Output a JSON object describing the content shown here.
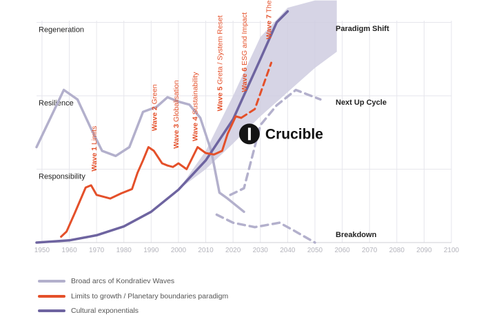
{
  "chart_data": {
    "type": "line",
    "xlim": [
      1948,
      2100
    ],
    "x_ticks": [
      1950,
      1960,
      1970,
      1980,
      1990,
      2000,
      2010,
      2020,
      2030,
      2040,
      2050,
      2060,
      2070,
      2080,
      2090,
      2100
    ],
    "y_bands": [
      "Regeneration",
      "Resilience",
      "Responsibility"
    ],
    "grid": true,
    "colors": {
      "kondratiev": "#b3b0cc",
      "limits": "#e4502a",
      "exponential": "#6e64a0",
      "band": "#cfcce0",
      "crucible": "#141414"
    },
    "series": [
      {
        "name": "Broad arcs of Kondratiev Waves",
        "style": "solid",
        "points": [
          [
            1948,
            1.3
          ],
          [
            1958,
            2.08
          ],
          [
            1963,
            1.95
          ],
          [
            1968,
            1.55
          ],
          [
            1972,
            1.25
          ],
          [
            1977,
            1.18
          ],
          [
            1982,
            1.3
          ],
          [
            1987,
            1.78
          ],
          [
            1992,
            1.85
          ],
          [
            1996,
            1.98
          ],
          [
            2000,
            1.92
          ],
          [
            2004,
            1.88
          ],
          [
            2008,
            1.7
          ],
          [
            2012,
            1.25
          ],
          [
            2015,
            0.68
          ],
          [
            2018,
            0.6
          ],
          [
            2024,
            0.42
          ]
        ]
      },
      {
        "name": "Limits to growth / Planetary boundaries paradigm",
        "style": "solid",
        "points": [
          [
            1957,
            0.08
          ],
          [
            1959,
            0.15
          ],
          [
            1962,
            0.4
          ],
          [
            1966,
            0.75
          ],
          [
            1968,
            0.78
          ],
          [
            1970,
            0.65
          ],
          [
            1975,
            0.6
          ],
          [
            1979,
            0.67
          ],
          [
            1983,
            0.73
          ],
          [
            1985,
            0.95
          ],
          [
            1987,
            1.12
          ],
          [
            1989,
            1.3
          ],
          [
            1991,
            1.25
          ],
          [
            1994,
            1.08
          ],
          [
            1996,
            1.05
          ],
          [
            1998,
            1.03
          ],
          [
            2000,
            1.08
          ],
          [
            2003,
            1.0
          ],
          [
            2005,
            1.15
          ],
          [
            2007,
            1.3
          ],
          [
            2010,
            1.22
          ],
          [
            2013,
            1.2
          ],
          [
            2016,
            1.25
          ],
          [
            2018,
            1.48
          ],
          [
            2021,
            1.72
          ],
          [
            2023,
            1.7
          ]
        ]
      },
      {
        "name": "Limits to growth / Planetary boundaries paradigm (projection)",
        "style": "dashed",
        "points": [
          [
            2023,
            1.7
          ],
          [
            2028,
            1.82
          ],
          [
            2034,
            2.45
          ]
        ]
      },
      {
        "name": "Cultural exponentials",
        "style": "solid",
        "points": [
          [
            1948,
            0.0
          ],
          [
            1960,
            0.03
          ],
          [
            1970,
            0.1
          ],
          [
            1980,
            0.22
          ],
          [
            1990,
            0.42
          ],
          [
            2000,
            0.72
          ],
          [
            2010,
            1.12
          ],
          [
            2020,
            1.68
          ],
          [
            2030,
            2.5
          ],
          [
            2036,
            3.0
          ],
          [
            2040,
            3.15
          ]
        ]
      },
      {
        "name": "Next Up Cycle",
        "style": "dashed",
        "points": [
          [
            2019,
            0.65
          ],
          [
            2024,
            0.74
          ],
          [
            2030,
            1.6
          ],
          [
            2036,
            1.87
          ],
          [
            2043,
            2.08
          ],
          [
            2052,
            1.95
          ]
        ]
      },
      {
        "name": "Breakdown",
        "style": "dashed",
        "points": [
          [
            2014,
            0.38
          ],
          [
            2020,
            0.27
          ],
          [
            2028,
            0.21
          ],
          [
            2037,
            0.27
          ],
          [
            2042,
            0.17
          ],
          [
            2050,
            0.0
          ]
        ]
      }
    ],
    "band": {
      "x": [
        2000,
        2010,
        2020,
        2030,
        2040,
        2050,
        2058
      ],
      "low": [
        0.72,
        1.0,
        1.35,
        1.72,
        2.05,
        2.38,
        2.6
      ],
      "high": [
        0.72,
        1.25,
        2.0,
        2.8,
        3.2,
        3.3,
        3.3
      ]
    },
    "crucible": {
      "x": 2026,
      "y": 1.48,
      "label": "Crucible"
    },
    "end_labels": {
      "paradigm_shift": "Paradigm Shift",
      "next_up_cycle": "Next Up Cycle",
      "breakdown": "Breakdown"
    },
    "wave_labels": [
      {
        "num": "Wave 1",
        "text": " Limits",
        "x": 1970,
        "y": 0.97
      },
      {
        "num": "Wave 2",
        "text": " Green",
        "x": 1992,
        "y": 1.52
      },
      {
        "num": "Wave 3",
        "text": " Globalisation",
        "x": 2000,
        "y": 1.28
      },
      {
        "num": "Wave 4",
        "text": " Sustainability",
        "x": 2007,
        "y": 1.38
      },
      {
        "num": "Wave 5",
        "text": " Greta / System Reset",
        "x": 2016,
        "y": 1.79
      },
      {
        "num": "Wave 6",
        "text": " ESG and Impact",
        "x": 2025,
        "y": 2.05
      },
      {
        "num": "Wave 7",
        "text": " The Big One",
        "x": 2034,
        "y": 2.77
      }
    ]
  },
  "legend": [
    {
      "label": "Broad arcs of Kondratiev Waves",
      "color": "#b3b0cc"
    },
    {
      "label": "Limits to growth / Planetary boundaries paradigm",
      "color": "#e4502a"
    },
    {
      "label": "Cultural exponentials",
      "color": "#6e64a0"
    }
  ]
}
